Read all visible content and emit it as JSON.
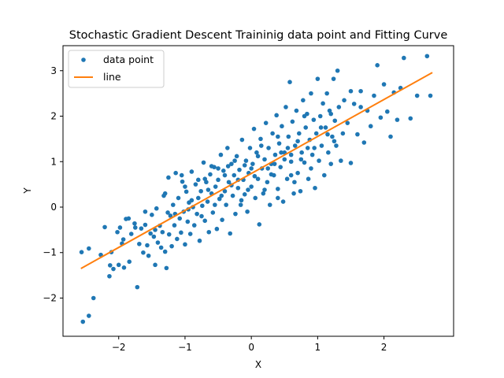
{
  "chart_data": {
    "type": "scatter",
    "title": "Stochastic Gradient Descent Traininig data point and Fitting Curve",
    "xlabel": "X",
    "ylabel": "Y",
    "xlim": [
      -2.84,
      3.05
    ],
    "ylim": [
      -2.84,
      3.55
    ],
    "xticks": [
      -2,
      -1,
      0,
      1,
      2
    ],
    "yticks": [
      -2,
      -1,
      0,
      1,
      2,
      3
    ],
    "tick_labels_x": [
      "−2",
      "−1",
      "0",
      "1",
      "2"
    ],
    "tick_labels_y": [
      "−2",
      "−1",
      "0",
      "1",
      "2",
      "3"
    ],
    "legend_position": "upper-left",
    "grid": false,
    "series": [
      {
        "name": "data point",
        "kind": "scatter",
        "color": "#1f77b4",
        "points": [
          [
            -2.54,
            -2.52
          ],
          [
            -2.45,
            -2.39
          ],
          [
            -2.38,
            -2.0
          ],
          [
            -2.56,
            -0.99
          ],
          [
            -2.45,
            -0.91
          ],
          [
            -2.27,
            -1.05
          ],
          [
            -2.21,
            -0.44
          ],
          [
            -2.14,
            -1.52
          ],
          [
            -2.13,
            -1.28
          ],
          [
            -2.11,
            -0.99
          ],
          [
            -2.08,
            -1.36
          ],
          [
            -2.02,
            -0.55
          ],
          [
            -2.0,
            -1.27
          ],
          [
            -1.98,
            -0.45
          ],
          [
            -1.93,
            -0.71
          ],
          [
            -1.92,
            -1.33
          ],
          [
            -1.89,
            -0.26
          ],
          [
            -1.84,
            -1.2
          ],
          [
            -1.81,
            -0.59
          ],
          [
            -1.76,
            -0.36
          ],
          [
            -1.72,
            -1.76
          ],
          [
            -1.69,
            -0.81
          ],
          [
            -1.66,
            -0.47
          ],
          [
            -1.63,
            -1.0
          ],
          [
            -1.6,
            -0.39
          ],
          [
            -1.57,
            -0.84
          ],
          [
            -1.55,
            -1.07
          ],
          [
            -1.52,
            -0.58
          ],
          [
            -1.5,
            -0.17
          ],
          [
            -1.47,
            -0.65
          ],
          [
            -1.45,
            -1.27
          ],
          [
            -1.43,
            -0.03
          ],
          [
            -1.41,
            -0.78
          ],
          [
            -1.38,
            -0.41
          ],
          [
            -1.36,
            -0.89
          ],
          [
            -1.34,
            -0.55
          ],
          [
            -1.32,
            0.25
          ],
          [
            -1.3,
            -0.98
          ],
          [
            -1.28,
            -1.34
          ],
          [
            -1.26,
            -0.12
          ],
          [
            -1.24,
            -0.6
          ],
          [
            -1.22,
            -0.19
          ],
          [
            -1.2,
            -0.86
          ],
          [
            -1.18,
            0.05
          ],
          [
            -1.16,
            -0.4
          ],
          [
            -1.14,
            0.75
          ],
          [
            -1.12,
            -0.7
          ],
          [
            -1.1,
            0.2
          ],
          [
            -1.08,
            -0.25
          ],
          [
            -1.06,
            -0.56
          ],
          [
            -1.04,
            0.56
          ],
          [
            -1.02,
            -0.1
          ],
          [
            -1.0,
            -0.82
          ],
          [
            -0.98,
            0.34
          ],
          [
            -0.96,
            -0.32
          ],
          [
            -0.94,
            0.1
          ],
          [
            -0.92,
            -0.59
          ],
          [
            -0.9,
            0.78
          ],
          [
            -0.88,
            0.0
          ],
          [
            -0.86,
            -0.4
          ],
          [
            -0.84,
            0.5
          ],
          [
            -0.82,
            -0.15
          ],
          [
            -0.8,
            0.2
          ],
          [
            -0.78,
            -0.74
          ],
          [
            -0.76,
            0.35
          ],
          [
            -0.74,
            0.03
          ],
          [
            -0.72,
            0.98
          ],
          [
            -0.7,
            -0.3
          ],
          [
            -0.68,
            0.55
          ],
          [
            -0.66,
            0.12
          ],
          [
            -0.64,
            -0.55
          ],
          [
            -0.62,
            0.72
          ],
          [
            -0.6,
            0.3
          ],
          [
            -0.58,
            -0.12
          ],
          [
            -0.56,
            0.88
          ],
          [
            -0.54,
            0.45
          ],
          [
            -0.52,
            -0.48
          ],
          [
            -0.5,
            0.6
          ],
          [
            -0.48,
            0.18
          ],
          [
            -0.46,
            1.15
          ],
          [
            -0.44,
            -0.28
          ],
          [
            -0.42,
            0.8
          ],
          [
            -0.4,
            0.35
          ],
          [
            -0.38,
            0.05
          ],
          [
            -0.36,
            1.3
          ],
          [
            -0.34,
            0.55
          ],
          [
            -0.32,
            -0.58
          ],
          [
            -0.3,
            0.95
          ],
          [
            -0.28,
            0.25
          ],
          [
            -0.26,
            0.7
          ],
          [
            -0.24,
            -0.15
          ],
          [
            -0.22,
            1.12
          ],
          [
            -0.2,
            0.42
          ],
          [
            -0.18,
            0.82
          ],
          [
            -0.16,
            0.05
          ],
          [
            -0.14,
            1.48
          ],
          [
            -0.12,
            0.6
          ],
          [
            -0.1,
            0.28
          ],
          [
            -0.08,
            1.02
          ],
          [
            -0.06,
            -0.1
          ],
          [
            -0.04,
            0.75
          ],
          [
            -0.02,
            1.3
          ],
          [
            0.0,
            0.45
          ],
          [
            0.02,
            0.95
          ],
          [
            0.04,
            1.72
          ],
          [
            0.06,
            0.2
          ],
          [
            0.08,
            1.2
          ],
          [
            0.1,
            0.62
          ],
          [
            0.12,
            -0.38
          ],
          [
            0.14,
            1.5
          ],
          [
            0.16,
            0.85
          ],
          [
            0.18,
            0.3
          ],
          [
            0.2,
            1.05
          ],
          [
            0.22,
            1.85
          ],
          [
            0.24,
            0.55
          ],
          [
            0.26,
            1.3
          ],
          [
            0.28,
            0.05
          ],
          [
            0.3,
            0.95
          ],
          [
            0.32,
            1.62
          ],
          [
            0.34,
            0.7
          ],
          [
            0.36,
            1.15
          ],
          [
            0.38,
            2.02
          ],
          [
            0.4,
            0.4
          ],
          [
            0.42,
            1.4
          ],
          [
            0.44,
            0.88
          ],
          [
            0.46,
            1.78
          ],
          [
            0.48,
            0.12
          ],
          [
            0.5,
            1.2
          ],
          [
            0.52,
            2.2
          ],
          [
            0.54,
            0.62
          ],
          [
            0.56,
            1.55
          ],
          [
            0.58,
            2.75
          ],
          [
            0.6,
            1.0
          ],
          [
            0.62,
            1.88
          ],
          [
            0.64,
            0.3
          ],
          [
            0.66,
            1.35
          ],
          [
            0.68,
            2.12
          ],
          [
            0.7,
            0.75
          ],
          [
            0.72,
            1.62
          ],
          [
            0.74,
            0.35
          ],
          [
            0.76,
            1.2
          ],
          [
            0.78,
            2.35
          ],
          [
            0.8,
            0.98
          ],
          [
            0.82,
            1.75
          ],
          [
            0.84,
            2.05
          ],
          [
            0.86,
            0.62
          ],
          [
            0.88,
            1.48
          ],
          [
            0.9,
            2.5
          ],
          [
            0.92,
            1.15
          ],
          [
            0.94,
            1.92
          ],
          [
            0.96,
            0.42
          ],
          [
            0.98,
            1.62
          ],
          [
            1.0,
            2.82
          ],
          [
            1.02,
            1.02
          ],
          [
            1.04,
            2.0
          ],
          [
            1.06,
            1.35
          ],
          [
            1.08,
            2.28
          ],
          [
            1.1,
            0.7
          ],
          [
            1.12,
            1.75
          ],
          [
            1.14,
            2.5
          ],
          [
            1.16,
            1.2
          ],
          [
            1.18,
            2.12
          ],
          [
            1.2,
            0.95
          ],
          [
            1.22,
            1.55
          ],
          [
            1.24,
            2.82
          ],
          [
            1.26,
            1.9
          ],
          [
            1.28,
            1.35
          ],
          [
            1.3,
            3.0
          ],
          [
            1.32,
            2.2
          ],
          [
            1.35,
            1.02
          ],
          [
            1.38,
            1.62
          ],
          [
            1.4,
            2.35
          ],
          [
            1.45,
            1.85
          ],
          [
            1.5,
            0.97
          ],
          [
            1.55,
            2.27
          ],
          [
            1.6,
            1.6
          ],
          [
            1.65,
            2.2
          ],
          [
            1.7,
            1.42
          ],
          [
            1.75,
            2.12
          ],
          [
            1.8,
            1.78
          ],
          [
            1.85,
            2.45
          ],
          [
            1.9,
            3.12
          ],
          [
            1.95,
            1.97
          ],
          [
            2.0,
            2.7
          ],
          [
            2.05,
            2.1
          ],
          [
            2.1,
            1.55
          ],
          [
            2.15,
            2.52
          ],
          [
            2.2,
            1.92
          ],
          [
            2.25,
            2.62
          ],
          [
            2.3,
            3.28
          ],
          [
            2.4,
            1.95
          ],
          [
            2.5,
            2.45
          ],
          [
            2.65,
            3.32
          ],
          [
            2.7,
            2.45
          ],
          [
            -0.7,
            0.62
          ],
          [
            -0.5,
            0.85
          ],
          [
            -0.3,
            0.48
          ],
          [
            -0.1,
            0.92
          ],
          [
            0.1,
            1.12
          ],
          [
            0.3,
            0.72
          ],
          [
            0.5,
            1.05
          ],
          [
            -0.9,
            0.15
          ],
          [
            -0.6,
            0.9
          ],
          [
            -0.4,
            0.7
          ],
          [
            0.0,
            0.85
          ],
          [
            0.2,
            0.38
          ],
          [
            0.4,
            1.55
          ],
          [
            0.6,
            0.7
          ],
          [
            -0.2,
            0.6
          ],
          [
            0.15,
            1.35
          ],
          [
            0.35,
            0.95
          ],
          [
            0.55,
            1.3
          ],
          [
            0.75,
            1.05
          ],
          [
            0.95,
            1.3
          ],
          [
            1.15,
            1.6
          ],
          [
            -1.0,
            0.45
          ],
          [
            -0.8,
            0.6
          ],
          [
            -0.45,
            0.25
          ],
          [
            -0.15,
            0.15
          ],
          [
            0.25,
            0.85
          ],
          [
            0.45,
            1.2
          ],
          [
            0.65,
            0.55
          ],
          [
            -1.3,
            0.3
          ],
          [
            -1.15,
            -0.15
          ],
          [
            -0.95,
            -0.05
          ],
          [
            -0.65,
            0.38
          ],
          [
            -0.35,
            0.9
          ],
          [
            0.05,
            0.68
          ],
          [
            0.85,
            1.3
          ],
          [
            1.05,
            1.75
          ],
          [
            1.25,
            1.45
          ],
          [
            -0.25,
            1.02
          ],
          [
            -0.05,
            0.38
          ],
          [
            0.7,
            1.45
          ],
          [
            0.9,
            0.85
          ],
          [
            1.5,
            2.55
          ],
          [
            1.65,
            2.55
          ],
          [
            1.2,
            2.05
          ],
          [
            0.8,
            2.0
          ],
          [
            0.6,
            1.15
          ],
          [
            0.4,
            0.2
          ],
          [
            -0.55,
            0.05
          ],
          [
            -0.75,
            -0.2
          ],
          [
            -1.45,
            -0.5
          ],
          [
            -1.6,
            -0.1
          ],
          [
            -1.75,
            -0.45
          ],
          [
            -1.95,
            -0.8
          ],
          [
            -1.85,
            -0.25
          ],
          [
            -1.25,
            0.65
          ],
          [
            -1.05,
            0.7
          ]
        ]
      },
      {
        "name": "line",
        "kind": "line",
        "color": "#ff7f0e",
        "points": [
          [
            -2.57,
            -1.35
          ],
          [
            2.73,
            2.96
          ]
        ]
      }
    ]
  }
}
